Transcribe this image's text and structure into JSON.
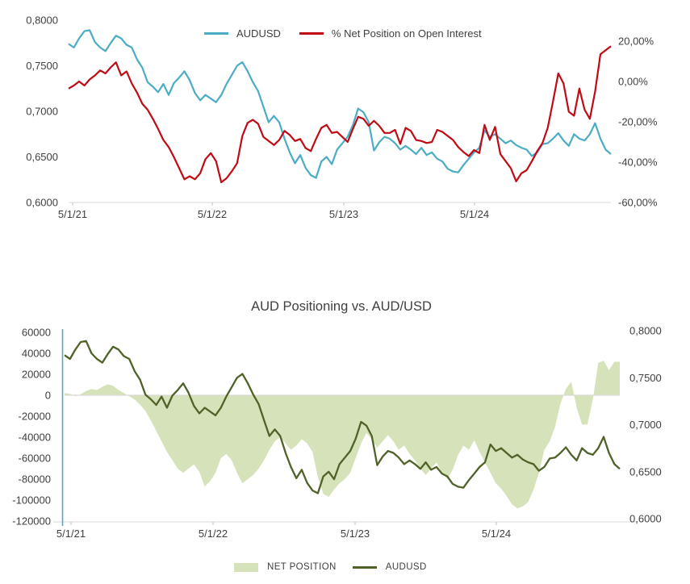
{
  "colors": {
    "audusd_blue": "#4bacc6",
    "net_pct_red": "#c00a14",
    "area_green": "#d6e3ba",
    "audusd_dark_green": "#4f6228",
    "teal_line": "#4bacc6",
    "axis_line_gray": "#d9d9d9",
    "tick_gray": "#bfbfbf",
    "label_gray": "#3f3f3f"
  },
  "top_chart": {
    "legend": [
      {
        "label": "AUDUSD",
        "color": "#4bacc6"
      },
      {
        "label": "% Net Position on Open Interest",
        "color": "#c00a14"
      }
    ],
    "left_axis_labels": [
      "0,8000",
      "0,7500",
      "0,7000",
      "0,6500",
      "0,6000"
    ],
    "right_axis_labels": [
      "20,00%",
      "0,00%",
      "-20,00%",
      "-40,00%",
      "-60,00%"
    ],
    "x_axis_labels": [
      "5/1/21",
      "5/1/22",
      "5/1/23",
      "5/1/24"
    ]
  },
  "bottom_chart": {
    "title": "AUD Positioning vs. AUD/USD",
    "legend": [
      {
        "label": "NET POSITION",
        "color": "#d6e3ba"
      },
      {
        "label": "AUDUSD",
        "color": "#4f6228"
      }
    ],
    "left_axis_labels": [
      "60000",
      "40000",
      "20000",
      "0",
      "-20000",
      "-40000",
      "-60000",
      "-80000",
      "-100000",
      "-120000"
    ],
    "right_axis_labels": [
      "0,8000",
      "0,7500",
      "0,7000",
      "0,6500",
      "0,6000"
    ],
    "x_axis_labels": [
      "5/1/21",
      "5/1/22",
      "5/1/23",
      "5/1/24"
    ]
  },
  "chart_data": [
    {
      "type": "line",
      "title": "",
      "x_ticks": [
        "5/1/21",
        "5/1/22",
        "5/1/23",
        "5/1/24"
      ],
      "left_axis": {
        "label_format": "price",
        "ticks": [
          0.8,
          0.75,
          0.7,
          0.65,
          0.6
        ],
        "tick_labels": [
          "0,8000",
          "0,7500",
          "0,7000",
          "0,6500",
          "0,6000"
        ],
        "range": [
          0.6,
          0.8
        ]
      },
      "right_axis": {
        "label_format": "percent",
        "ticks": [
          20,
          0,
          -20,
          -40,
          -60
        ],
        "tick_labels": [
          "20,00%",
          "0,00%",
          "-20,00%",
          "-40,00%",
          "-60,00%"
        ],
        "range": [
          -60,
          20
        ]
      },
      "legend_position": "top",
      "grid": false,
      "series": [
        {
          "name": "AUDUSD",
          "axis": "left",
          "color": "#4bacc6",
          "values": [
            0.774,
            0.77,
            0.78,
            0.788,
            0.789,
            0.776,
            0.77,
            0.766,
            0.775,
            0.783,
            0.78,
            0.773,
            0.77,
            0.757,
            0.748,
            0.732,
            0.727,
            0.721,
            0.73,
            0.718,
            0.731,
            0.737,
            0.744,
            0.734,
            0.72,
            0.712,
            0.718,
            0.714,
            0.71,
            0.718,
            0.73,
            0.74,
            0.75,
            0.754,
            0.744,
            0.732,
            0.722,
            0.705,
            0.688,
            0.695,
            0.688,
            0.67,
            0.655,
            0.643,
            0.652,
            0.638,
            0.63,
            0.627,
            0.645,
            0.65,
            0.642,
            0.658,
            0.665,
            0.672,
            0.685,
            0.703,
            0.699,
            0.688,
            0.657,
            0.666,
            0.672,
            0.67,
            0.665,
            0.658,
            0.662,
            0.658,
            0.653,
            0.66,
            0.652,
            0.655,
            0.648,
            0.645,
            0.637,
            0.634,
            0.633,
            0.641,
            0.648,
            0.655,
            0.66,
            0.679,
            0.672,
            0.675,
            0.67,
            0.665,
            0.668,
            0.663,
            0.66,
            0.658,
            0.651,
            0.655,
            0.664,
            0.665,
            0.67,
            0.676,
            0.668,
            0.662,
            0.675,
            0.67,
            0.668,
            0.675,
            0.687,
            0.67,
            0.658,
            0.653
          ]
        },
        {
          "name": "% Net Position on Open Interest",
          "axis": "right",
          "color": "#c00a14",
          "values": [
            -3.5,
            -2,
            0,
            -2,
            1,
            3,
            5.5,
            4,
            7,
            9.5,
            3,
            5,
            -1,
            -5.5,
            -11,
            -14,
            -18.5,
            -23.5,
            -29,
            -32.5,
            -37.5,
            -43,
            -48.5,
            -47,
            -48.5,
            -45.5,
            -38.5,
            -35.5,
            -39.5,
            -50,
            -48,
            -44.5,
            -40.5,
            -27,
            -20.5,
            -19,
            -21,
            -27.5,
            -29.5,
            -31.5,
            -29,
            -24.5,
            -26.5,
            -29.5,
            -28.5,
            -33,
            -34.5,
            -28.5,
            -23,
            -21.5,
            -25.5,
            -25,
            -27.5,
            -30,
            -23.5,
            -17.5,
            -18.5,
            -22,
            -19.5,
            -22,
            -25.5,
            -25.5,
            -24,
            -31,
            -23,
            -24.5,
            -29,
            -29.5,
            -30.5,
            -30,
            -24,
            -25,
            -27,
            -29,
            -32.5,
            -35,
            -37,
            -34,
            -35.5,
            -21.5,
            -29,
            -22.5,
            -36,
            -39.5,
            -43,
            -49.5,
            -45.5,
            -44,
            -39.5,
            -34.5,
            -30.5,
            -23,
            -10,
            4,
            -1,
            -15,
            -17,
            -3.5,
            -14,
            -18.5,
            -5,
            13.5,
            15.5,
            17.5
          ]
        }
      ]
    },
    {
      "type": "area",
      "title": "AUD Positioning vs. AUD/USD",
      "x_ticks": [
        "5/1/21",
        "5/1/22",
        "5/1/23",
        "5/1/24"
      ],
      "left_axis": {
        "label_format": "contracts",
        "ticks": [
          60000,
          40000,
          20000,
          0,
          -20000,
          -40000,
          -60000,
          -80000,
          -100000,
          -120000
        ],
        "tick_labels": [
          "60000",
          "40000",
          "20000",
          "0",
          "-20000",
          "-40000",
          "-60000",
          "-80000",
          "-100000",
          "-120000"
        ],
        "range": [
          -120000,
          60000
        ]
      },
      "right_axis": {
        "label_format": "price",
        "ticks": [
          0.8,
          0.75,
          0.7,
          0.65,
          0.6
        ],
        "tick_labels": [
          "0,8000",
          "0,7500",
          "0,7000",
          "0,6500",
          "0,6000"
        ],
        "range": [
          0.6,
          0.8
        ]
      },
      "legend_position": "bottom",
      "grid": false,
      "series": [
        {
          "name": "NET POSITION",
          "axis": "left",
          "style": "area",
          "color": "#d6e3ba",
          "values": [
            2000,
            1500,
            -1000,
            1000,
            4000,
            6000,
            5000,
            8000,
            10500,
            9000,
            5000,
            2000,
            -1000,
            -4000,
            -9000,
            -15000,
            -24000,
            -34000,
            -44000,
            -54000,
            -62000,
            -70000,
            -74000,
            -70000,
            -66000,
            -73000,
            -87000,
            -82000,
            -74000,
            -60000,
            -56000,
            -62000,
            -74000,
            -84000,
            -80000,
            -76000,
            -70000,
            -62000,
            -52000,
            -44000,
            -40000,
            -46000,
            -52000,
            -48000,
            -42000,
            -46000,
            -54000,
            -78000,
            -94000,
            -97000,
            -90000,
            -84000,
            -80000,
            -74000,
            -60000,
            -46000,
            -36000,
            -42000,
            -50000,
            -44000,
            -38000,
            -44000,
            -52000,
            -48000,
            -56000,
            -62000,
            -70000,
            -76000,
            -70000,
            -64000,
            -74000,
            -80000,
            -71000,
            -57000,
            -48000,
            -52000,
            -43000,
            -54000,
            -64000,
            -74000,
            -84000,
            -89000,
            -96000,
            -104000,
            -108000,
            -106000,
            -102000,
            -90000,
            -74000,
            -52000,
            -44000,
            -30000,
            -8000,
            6000,
            13000,
            -12000,
            -28000,
            -28000,
            -4000,
            31000,
            33000,
            24000,
            32000,
            32000
          ]
        },
        {
          "name": "AUDUSD",
          "axis": "right",
          "style": "line",
          "color": "#4f6228",
          "values": [
            0.774,
            0.77,
            0.78,
            0.788,
            0.789,
            0.776,
            0.77,
            0.766,
            0.775,
            0.783,
            0.78,
            0.773,
            0.77,
            0.757,
            0.748,
            0.732,
            0.727,
            0.721,
            0.73,
            0.718,
            0.731,
            0.737,
            0.744,
            0.734,
            0.72,
            0.712,
            0.718,
            0.714,
            0.71,
            0.718,
            0.73,
            0.74,
            0.75,
            0.754,
            0.744,
            0.732,
            0.722,
            0.705,
            0.688,
            0.695,
            0.688,
            0.67,
            0.655,
            0.643,
            0.652,
            0.638,
            0.63,
            0.627,
            0.645,
            0.65,
            0.642,
            0.658,
            0.665,
            0.672,
            0.685,
            0.703,
            0.699,
            0.688,
            0.657,
            0.666,
            0.672,
            0.67,
            0.665,
            0.658,
            0.662,
            0.658,
            0.653,
            0.66,
            0.652,
            0.655,
            0.648,
            0.645,
            0.637,
            0.634,
            0.633,
            0.641,
            0.648,
            0.655,
            0.66,
            0.679,
            0.672,
            0.675,
            0.67,
            0.665,
            0.668,
            0.663,
            0.66,
            0.658,
            0.651,
            0.655,
            0.664,
            0.665,
            0.67,
            0.676,
            0.668,
            0.662,
            0.675,
            0.67,
            0.668,
            0.675,
            0.687,
            0.67,
            0.658,
            0.653
          ]
        }
      ]
    }
  ]
}
